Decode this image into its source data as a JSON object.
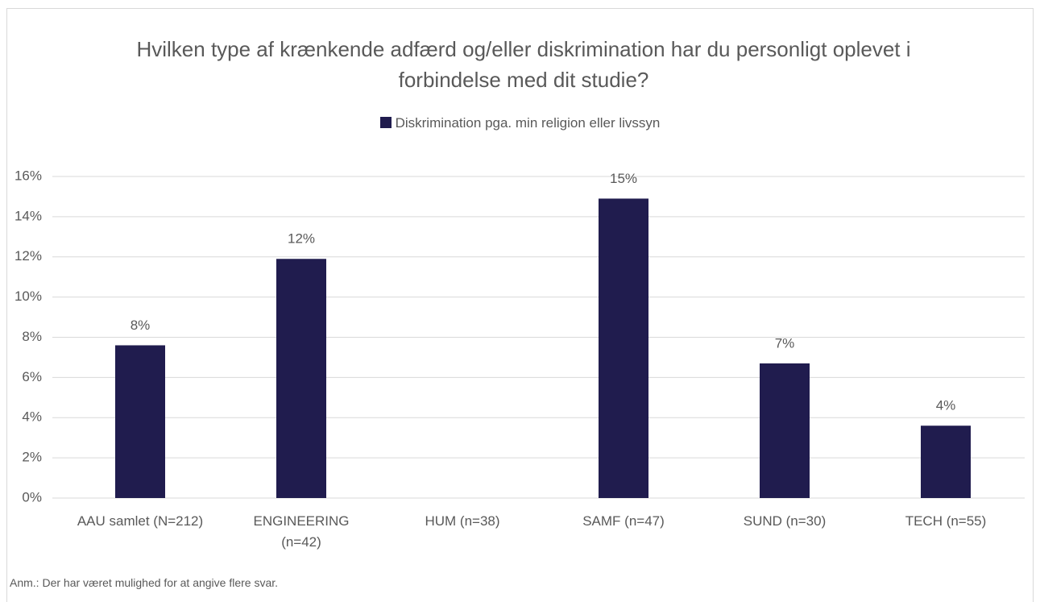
{
  "chart_data": {
    "type": "bar",
    "title": "Hvilken type af krænkende adfærd og/eller diskrimination har du personligt oplevet i forbindelse med dit studie?",
    "categories": [
      "AAU samlet (N=212)",
      "ENGINEERING (n=42)",
      "HUM (n=38)",
      "SAMF (n=47)",
      "SUND (n=30)",
      "TECH (n=55)"
    ],
    "series": [
      {
        "name": "Diskrimination pga. min religion eller livssyn",
        "color": "#201c4e",
        "values": [
          7.6,
          11.9,
          0,
          14.9,
          6.7,
          3.6
        ],
        "value_labels": [
          "8%",
          "12%",
          null,
          "15%",
          "7%",
          "4%"
        ]
      }
    ],
    "ylim": [
      0,
      16
    ],
    "yticks": [
      {
        "value": 0,
        "label": "0%"
      },
      {
        "value": 2,
        "label": "2%"
      },
      {
        "value": 4,
        "label": "4%"
      },
      {
        "value": 6,
        "label": "6%"
      },
      {
        "value": 8,
        "label": "8%"
      },
      {
        "value": 10,
        "label": "10%"
      },
      {
        "value": 12,
        "label": "12%"
      },
      {
        "value": 14,
        "label": "14%"
      },
      {
        "value": 16,
        "label": "16%"
      }
    ],
    "grid": true,
    "legend": "top",
    "note": "Anm.: Der har været mulighed for at angive flere svar."
  }
}
